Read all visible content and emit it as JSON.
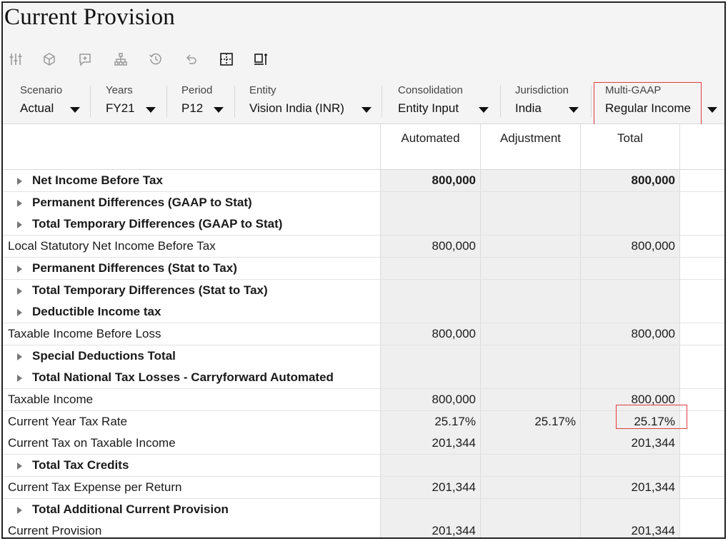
{
  "title": "Current Provision",
  "toolbar": {
    "icons": [
      "adjust-sliders-icon",
      "cube-icon",
      "add-comment-icon",
      "hierarchy-icon",
      "history-icon",
      "undo-icon",
      "grid-select-icon",
      "format-icon"
    ]
  },
  "pov": [
    {
      "label": "Scenario",
      "value": "Actual"
    },
    {
      "label": "Years",
      "value": "FY21"
    },
    {
      "label": "Period",
      "value": "P12"
    },
    {
      "label": "Entity",
      "value": "Vision India (INR)"
    },
    {
      "label": "Consolidation",
      "value": "Entity Input"
    },
    {
      "label": "Jurisdiction",
      "value": "India"
    },
    {
      "label": "Multi-GAAP",
      "value": "Regular Income"
    }
  ],
  "columns": [
    "Automated",
    "Adjustment",
    "Total"
  ],
  "rows": [
    {
      "label": "Net Income Before Tax",
      "type": "parent",
      "automated": "800,000",
      "adjustment": "",
      "total": "800,000"
    },
    {
      "label": "Permanent Differences (GAAP to Stat)",
      "type": "parent",
      "automated": "",
      "adjustment": "",
      "total": ""
    },
    {
      "label": "Total Temporary Differences (GAAP to Stat)",
      "type": "parent",
      "automated": "",
      "adjustment": "",
      "total": ""
    },
    {
      "label": "Local Statutory Net Income Before Tax",
      "type": "leaf",
      "automated": "800,000",
      "adjustment": "",
      "total": "800,000"
    },
    {
      "label": "Permanent Differences (Stat to Tax)",
      "type": "parent",
      "automated": "",
      "adjustment": "",
      "total": ""
    },
    {
      "label": "Total Temporary Differences (Stat to Tax)",
      "type": "parent",
      "automated": "",
      "adjustment": "",
      "total": ""
    },
    {
      "label": "Deductible Income tax",
      "type": "parent",
      "automated": "",
      "adjustment": "",
      "total": ""
    },
    {
      "label": "Taxable Income Before Loss",
      "type": "leaf",
      "automated": "800,000",
      "adjustment": "",
      "total": "800,000"
    },
    {
      "label": "Special Deductions Total",
      "type": "parent",
      "automated": "",
      "adjustment": "",
      "total": ""
    },
    {
      "label": "Total National Tax Losses - Carryforward Automated",
      "type": "parent",
      "automated": "",
      "adjustment": "",
      "total": ""
    },
    {
      "label": "Taxable Income",
      "type": "leaf",
      "automated": "800,000",
      "adjustment": "",
      "total": "800,000"
    },
    {
      "label": "Current Year Tax Rate",
      "type": "leaf",
      "automated": "25.17%",
      "adjustment": "25.17%",
      "total": "25.17%"
    },
    {
      "label": "Current Tax on Taxable Income",
      "type": "leaf",
      "automated": "201,344",
      "adjustment": "",
      "total": "201,344"
    },
    {
      "label": "Total Tax Credits",
      "type": "parent",
      "automated": "",
      "adjustment": "",
      "total": ""
    },
    {
      "label": "Current Tax Expense per Return",
      "type": "leaf",
      "automated": "201,344",
      "adjustment": "",
      "total": "201,344"
    },
    {
      "label": "Total Additional Current Provision",
      "type": "parent",
      "automated": "",
      "adjustment": "",
      "total": ""
    },
    {
      "label": "Current Provision",
      "type": "leaf",
      "automated": "201,344",
      "adjustment": "",
      "total": "201,344"
    }
  ],
  "colors": {
    "highlight": "#e23c3c",
    "cell_bg": "#efefef",
    "toolbar_bg": "#f4f4f4"
  }
}
